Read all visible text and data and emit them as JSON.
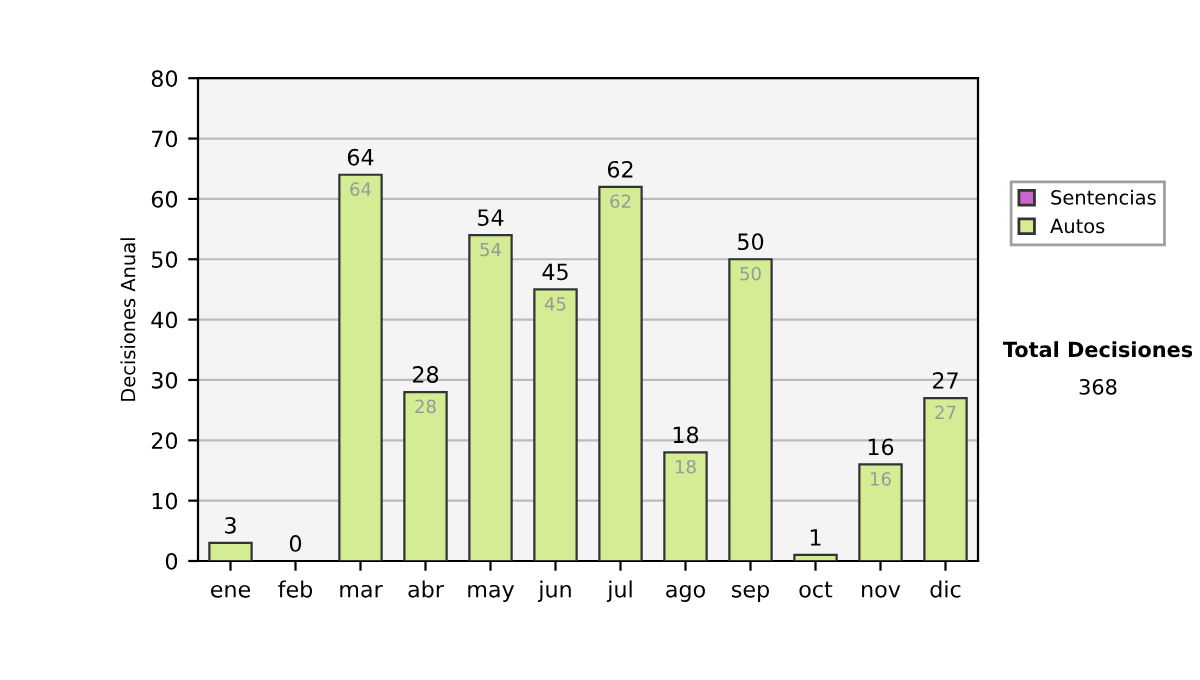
{
  "chart_data": {
    "type": "bar",
    "ylabel": "Decisiones Anual",
    "categories": [
      "ene",
      "feb",
      "mar",
      "abr",
      "may",
      "jun",
      "jul",
      "ago",
      "sep",
      "oct",
      "nov",
      "dic"
    ],
    "series": [
      {
        "name": "Sentencias",
        "color": "#cc66cc",
        "values": [
          0,
          0,
          0,
          0,
          0,
          0,
          0,
          0,
          0,
          0,
          0,
          0
        ]
      },
      {
        "name": "Autos",
        "color": "#d4ec94",
        "values": [
          3,
          0,
          64,
          28,
          54,
          45,
          62,
          18,
          50,
          1,
          16,
          27
        ],
        "value_labels": [
          null,
          null,
          "64",
          "28",
          "54",
          "45",
          "62",
          "18",
          "50",
          null,
          "16",
          "27"
        ]
      }
    ],
    "stacked": true,
    "totals": [
      "3",
      "0",
      "64",
      "28",
      "54",
      "45",
      "62",
      "18",
      "50",
      "1",
      "16",
      "27"
    ],
    "ylim": [
      0,
      80
    ],
    "yticks": [
      0,
      10,
      20,
      30,
      40,
      50,
      60,
      70,
      80
    ],
    "grid": "y",
    "legend": "right",
    "annotations": [
      "Total Decisiones",
      "368"
    ]
  }
}
